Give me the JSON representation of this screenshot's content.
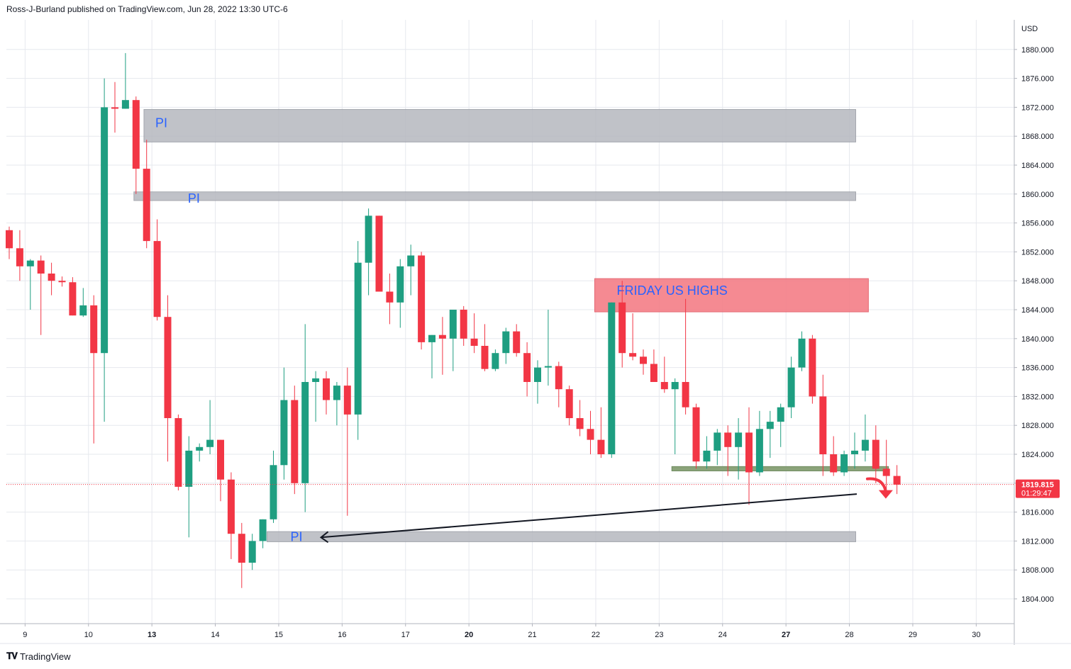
{
  "header": {
    "text": "Ross-J-Burland published on TradingView.com, Jun 28, 2022 13:30 UTC-6"
  },
  "footer": {
    "brand": "TradingView",
    "logo_icon": "tradingview-logo-icon"
  },
  "colors": {
    "up": "#26a69a",
    "upBody": "#1e9e81",
    "down": "#f23645",
    "grid": "#e6e8ee",
    "piZone": "#b6b8bf",
    "fridayZone": "#f47e87",
    "support": "#8ba37a",
    "priceLine": "#f23645",
    "text": "#131722",
    "piText": "#2962ff"
  },
  "chart_data": {
    "type": "candlestick",
    "currency": "USD",
    "ylim": [
      1800,
      1884
    ],
    "y_ticks": [
      1804,
      1808,
      1812,
      1816,
      1820,
      1824,
      1828,
      1832,
      1836,
      1840,
      1844,
      1848,
      1852,
      1856,
      1860,
      1864,
      1868,
      1872,
      1876,
      1880
    ],
    "y_tick_labels": [
      "1804.000",
      "1808.000",
      "1812.000",
      "1816.000",
      "1820.000",
      "1824.000",
      "1828.000",
      "1832.000",
      "1836.000",
      "1840.000",
      "1844.000",
      "1848.000",
      "1852.000",
      "1856.000",
      "1860.000",
      "1864.000",
      "1868.000",
      "1872.000",
      "1876.000",
      "1880.000"
    ],
    "x_labels": [
      {
        "label": "9",
        "bar": 1.5,
        "bold": false
      },
      {
        "label": "10",
        "bar": 7.5,
        "bold": false
      },
      {
        "label": "13",
        "bar": 13.5,
        "bold": true
      },
      {
        "label": "14",
        "bar": 19.5,
        "bold": false
      },
      {
        "label": "15",
        "bar": 25.5,
        "bold": false
      },
      {
        "label": "16",
        "bar": 31.5,
        "bold": false
      },
      {
        "label": "17",
        "bar": 37.5,
        "bold": false
      },
      {
        "label": "20",
        "bar": 43.5,
        "bold": true
      },
      {
        "label": "21",
        "bar": 49.5,
        "bold": false
      },
      {
        "label": "22",
        "bar": 55.5,
        "bold": false
      },
      {
        "label": "23",
        "bar": 61.5,
        "bold": false
      },
      {
        "label": "24",
        "bar": 67.5,
        "bold": false
      },
      {
        "label": "27",
        "bar": 73.5,
        "bold": true
      },
      {
        "label": "28",
        "bar": 79.5,
        "bold": false
      },
      {
        "label": "29",
        "bar": 85.5,
        "bold": false
      },
      {
        "label": "30",
        "bar": 91.5,
        "bold": false
      }
    ],
    "candles": [
      [
        1855.0,
        1855.5,
        1851.0,
        1852.5
      ],
      [
        1852.5,
        1855.0,
        1848.0,
        1850.0
      ],
      [
        1850.0,
        1851.0,
        1844.0,
        1850.8
      ],
      [
        1850.8,
        1851.5,
        1840.5,
        1849.0
      ],
      [
        1849.0,
        1850.5,
        1846.0,
        1848.0
      ],
      [
        1848.0,
        1848.6,
        1847.2,
        1847.8
      ],
      [
        1847.8,
        1848.5,
        1843.2,
        1843.2
      ],
      [
        1843.2,
        1847.0,
        1843.0,
        1844.6
      ],
      [
        1844.6,
        1846.0,
        1825.5,
        1838.0
      ],
      [
        1838.0,
        1876.0,
        1828.5,
        1872.0
      ],
      [
        1872.0,
        1875.5,
        1868.5,
        1871.8
      ],
      [
        1871.8,
        1879.5,
        1871.8,
        1873.0
      ],
      [
        1873.0,
        1873.5,
        1860.0,
        1863.5
      ],
      [
        1863.5,
        1867.5,
        1852.5,
        1853.5
      ],
      [
        1853.5,
        1856.5,
        1842.5,
        1843.0
      ],
      [
        1843.0,
        1846.0,
        1823.0,
        1829.0
      ],
      [
        1829.0,
        1829.5,
        1819.0,
        1819.5
      ],
      [
        1819.5,
        1826.5,
        1812.5,
        1824.5
      ],
      [
        1824.5,
        1825.5,
        1823.0,
        1825.0
      ],
      [
        1825.0,
        1831.5,
        1824.0,
        1826.0
      ],
      [
        1826.0,
        1826.0,
        1817.5,
        1820.5
      ],
      [
        1820.5,
        1821.5,
        1809.5,
        1813.0
      ],
      [
        1813.0,
        1814.5,
        1805.5,
        1809.0
      ],
      [
        1809.0,
        1813.0,
        1808.0,
        1812.0
      ],
      [
        1812.0,
        1815.0,
        1811.0,
        1815.0
      ],
      [
        1815.0,
        1824.5,
        1814.5,
        1822.5
      ],
      [
        1822.5,
        1836.0,
        1820.5,
        1831.5
      ],
      [
        1831.5,
        1833.5,
        1818.5,
        1820.0
      ],
      [
        1820.0,
        1842.0,
        1816.0,
        1834.0
      ],
      [
        1834.0,
        1835.5,
        1828.5,
        1834.5
      ],
      [
        1834.5,
        1835.5,
        1829.5,
        1831.5
      ],
      [
        1831.5,
        1834.0,
        1828.0,
        1833.5
      ],
      [
        1833.5,
        1836.0,
        1815.5,
        1829.5
      ],
      [
        1829.5,
        1853.5,
        1826.0,
        1850.5
      ],
      [
        1850.5,
        1858.0,
        1846.0,
        1857.0
      ],
      [
        1857.0,
        1857.0,
        1846.5,
        1846.5
      ],
      [
        1846.5,
        1849.0,
        1842.0,
        1845.0
      ],
      [
        1845.0,
        1851.0,
        1841.5,
        1850.0
      ],
      [
        1850.0,
        1853.0,
        1846.0,
        1851.5
      ],
      [
        1851.5,
        1852.0,
        1838.5,
        1839.5
      ],
      [
        1839.5,
        1840.5,
        1834.5,
        1840.5
      ],
      [
        1840.5,
        1843.0,
        1835.0,
        1840.0
      ],
      [
        1840.0,
        1844.0,
        1835.5,
        1844.0
      ],
      [
        1844.0,
        1844.5,
        1839.0,
        1840.0
      ],
      [
        1840.0,
        1843.5,
        1838.0,
        1839.0
      ],
      [
        1839.0,
        1842.0,
        1835.5,
        1835.8
      ],
      [
        1835.8,
        1838.5,
        1835.5,
        1838.0
      ],
      [
        1838.0,
        1841.5,
        1836.5,
        1841.0
      ],
      [
        1841.0,
        1842.0,
        1837.5,
        1838.0
      ],
      [
        1838.0,
        1839.5,
        1832.0,
        1834.0
      ],
      [
        1834.0,
        1837.0,
        1831.0,
        1836.0
      ],
      [
        1836.0,
        1844.0,
        1833.5,
        1836.2
      ],
      [
        1836.2,
        1836.8,
        1830.5,
        1833.0
      ],
      [
        1833.0,
        1833.5,
        1828.0,
        1829.0
      ],
      [
        1829.0,
        1831.5,
        1826.5,
        1827.5
      ],
      [
        1827.5,
        1830.0,
        1824.0,
        1826.0
      ],
      [
        1826.0,
        1830.5,
        1823.5,
        1824.0
      ],
      [
        1824.0,
        1845.0,
        1823.5,
        1845.0
      ],
      [
        1845.0,
        1848.0,
        1836.0,
        1838.0
      ],
      [
        1838.0,
        1843.5,
        1837.0,
        1837.5
      ],
      [
        1837.5,
        1838.5,
        1835.0,
        1836.5
      ],
      [
        1836.5,
        1838.5,
        1834.5,
        1834.0
      ],
      [
        1834.0,
        1837.5,
        1832.5,
        1833.0
      ],
      [
        1833.0,
        1834.5,
        1824.0,
        1834.0
      ],
      [
        1834.0,
        1845.5,
        1829.5,
        1830.5
      ],
      [
        1830.5,
        1831.0,
        1822.0,
        1823.0
      ],
      [
        1823.0,
        1826.5,
        1822.0,
        1824.5
      ],
      [
        1824.5,
        1827.5,
        1822.5,
        1827.0
      ],
      [
        1827.0,
        1828.0,
        1821.0,
        1825.0
      ],
      [
        1825.0,
        1829.0,
        1820.5,
        1827.0
      ],
      [
        1827.0,
        1830.5,
        1817.0,
        1821.5
      ],
      [
        1821.5,
        1830.0,
        1821.0,
        1827.5
      ],
      [
        1827.5,
        1830.0,
        1823.5,
        1828.5
      ],
      [
        1828.5,
        1831.0,
        1825.0,
        1830.5
      ],
      [
        1830.5,
        1837.5,
        1829.0,
        1836.0
      ],
      [
        1836.0,
        1841.0,
        1835.5,
        1840.0
      ],
      [
        1840.0,
        1840.5,
        1831.0,
        1832.0
      ],
      [
        1832.0,
        1835.0,
        1821.0,
        1824.0
      ],
      [
        1824.0,
        1826.5,
        1821.0,
        1821.5
      ],
      [
        1821.5,
        1824.5,
        1821.0,
        1824.0
      ],
      [
        1824.0,
        1827.0,
        1822.0,
        1824.5
      ],
      [
        1824.5,
        1829.5,
        1823.0,
        1826.0
      ],
      [
        1826.0,
        1828.0,
        1820.0,
        1822.0
      ],
      [
        1822.0,
        1826.0,
        1818.5,
        1821.0
      ],
      [
        1821.0,
        1822.5,
        1818.5,
        1819.8
      ]
    ],
    "zones": [
      {
        "type": "pi",
        "label": "PI",
        "from_bar": 12.75,
        "to_bar": 80.1,
        "top": 1871.7,
        "bottom": 1867.2
      },
      {
        "type": "pi",
        "label": "PI",
        "from_bar": 11.8,
        "to_bar": 80.1,
        "top": 1860.3,
        "bottom": 1859.1
      },
      {
        "type": "pi",
        "label": "PI",
        "from_bar": 24.4,
        "to_bar": 80.1,
        "top": 1813.3,
        "bottom": 1811.9
      },
      {
        "type": "friday",
        "label": "FRIDAY US HIGHS",
        "from_bar": 55.4,
        "to_bar": 81.3,
        "top": 1848.3,
        "bottom": 1843.7
      },
      {
        "type": "support",
        "label": "",
        "from_bar": 62.7,
        "to_bar": 83.2,
        "top": 1822.3,
        "bottom": 1821.7
      }
    ],
    "trendline": {
      "from_bar": 29.5,
      "from_price": 1812.5,
      "to_bar": 80.2,
      "to_price": 1818.5
    },
    "current_price": {
      "value": 1819.815,
      "label": "1819.815",
      "countdown": "01:29:47"
    }
  }
}
